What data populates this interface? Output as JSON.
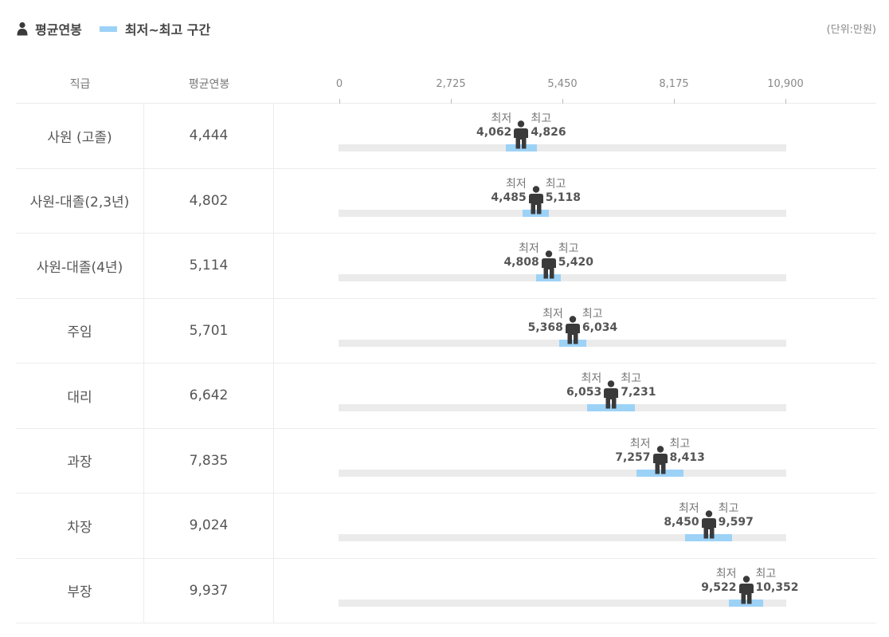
{
  "legend": {
    "avg_label": "평균연봉",
    "range_label": "최저~최고 구간",
    "avg_icon": "person-icon",
    "range_color": "#9dd2f7"
  },
  "unit_label": "(단위:만원)",
  "header": {
    "rank": "직급",
    "avg": "평균연봉"
  },
  "range_labels": {
    "min": "최저",
    "max": "최고"
  },
  "colors": {
    "person": "#3a3a3a",
    "range": "#9dd2f7",
    "track": "#ebebeb"
  },
  "chart_data": {
    "type": "range-dot",
    "xlim": [
      0,
      10900
    ],
    "ticks": [
      "0",
      "2,725",
      "5,450",
      "8,175",
      "10,900"
    ],
    "tick_values": [
      0,
      2725,
      5450,
      8175,
      10900
    ],
    "rows": [
      {
        "rank": "사원 (고졸)",
        "avg": 4444,
        "avg_label": "4,444",
        "min": 4062,
        "min_label": "4,062",
        "max": 4826,
        "max_label": "4,826"
      },
      {
        "rank": "사원-대졸(2,3년)",
        "avg": 4802,
        "avg_label": "4,802",
        "min": 4485,
        "min_label": "4,485",
        "max": 5118,
        "max_label": "5,118"
      },
      {
        "rank": "사원-대졸(4년)",
        "avg": 5114,
        "avg_label": "5,114",
        "min": 4808,
        "min_label": "4,808",
        "max": 5420,
        "max_label": "5,420"
      },
      {
        "rank": "주임",
        "avg": 5701,
        "avg_label": "5,701",
        "min": 5368,
        "min_label": "5,368",
        "max": 6034,
        "max_label": "6,034"
      },
      {
        "rank": "대리",
        "avg": 6642,
        "avg_label": "6,642",
        "min": 6053,
        "min_label": "6,053",
        "max": 7231,
        "max_label": "7,231"
      },
      {
        "rank": "과장",
        "avg": 7835,
        "avg_label": "7,835",
        "min": 7257,
        "min_label": "7,257",
        "max": 8413,
        "max_label": "8,413"
      },
      {
        "rank": "차장",
        "avg": 9024,
        "avg_label": "9,024",
        "min": 8450,
        "min_label": "8,450",
        "max": 9597,
        "max_label": "9,597"
      },
      {
        "rank": "부장",
        "avg": 9937,
        "avg_label": "9,937",
        "min": 9522,
        "min_label": "9,522",
        "max": 10352,
        "max_label": "10,352"
      }
    ]
  }
}
